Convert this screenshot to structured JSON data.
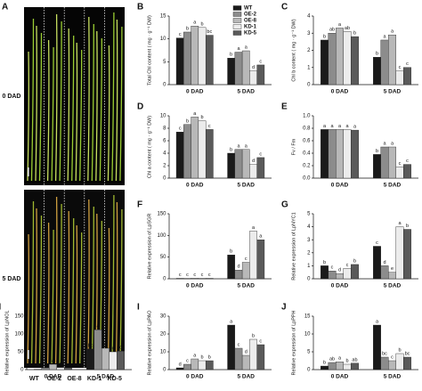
{
  "photo_panel": {
    "panel": "A",
    "rows": [
      "0 DAD",
      "5 DAD"
    ],
    "columns": [
      "WT",
      "OE-2",
      "OE-8",
      "KD-1",
      "KD-5"
    ]
  },
  "legend": {
    "names": [
      "WT",
      "OE-2",
      "OE-8",
      "KD-1",
      "KD-5"
    ],
    "colors": [
      "#1a1a1a",
      "#8c8c8c",
      "#b8b8b8",
      "#ececec",
      "#5a5a5a"
    ]
  },
  "chart_data": [
    {
      "type": "bar",
      "panel": "B",
      "y_label": "Total Chl content ( mg · g⁻¹ DW)",
      "categories": [
        "0 DAD",
        "5 DAD"
      ],
      "series": [
        {
          "values": [
            10.2,
            5.8
          ],
          "letters": [
            "c",
            "b"
          ]
        },
        {
          "values": [
            11.5,
            7.1
          ],
          "letters": [
            "b",
            "a"
          ]
        },
        {
          "values": [
            12.8,
            7.4
          ],
          "letters": [
            "a",
            "a"
          ]
        },
        {
          "values": [
            12.5,
            3.0
          ],
          "letters": [
            "b",
            "d"
          ]
        },
        {
          "values": [
            10.8,
            4.3
          ],
          "letters": [
            "bc",
            "c"
          ]
        }
      ],
      "ylim": [
        0,
        15
      ],
      "yticks": [
        0,
        5,
        10,
        15
      ]
    },
    {
      "type": "bar",
      "panel": "C",
      "y_label": "Chl b content ( mg · g⁻¹ DW)",
      "categories": [
        "0 DAD",
        "5 DAD"
      ],
      "series": [
        {
          "values": [
            2.6,
            1.6
          ],
          "letters": [
            "b",
            "b"
          ]
        },
        {
          "values": [
            3.0,
            2.6
          ],
          "letters": [
            "ab",
            "a"
          ]
        },
        {
          "values": [
            3.3,
            2.9
          ],
          "letters": [
            "a",
            "a"
          ]
        },
        {
          "values": [
            3.1,
            0.8
          ],
          "letters": [
            "ab",
            "c"
          ]
        },
        {
          "values": [
            2.8,
            1.0
          ],
          "letters": [
            "b",
            "c"
          ]
        }
      ],
      "ylim": [
        0,
        4
      ],
      "yticks": [
        0,
        1,
        2,
        3,
        4
      ]
    },
    {
      "type": "bar",
      "panel": "D",
      "y_label": "Chl a content ( mg · g⁻¹ DW)",
      "categories": [
        "0 DAD",
        "5 DAD"
      ],
      "series": [
        {
          "values": [
            7.4,
            4.0
          ],
          "letters": [
            "c",
            "b"
          ]
        },
        {
          "values": [
            8.6,
            4.6
          ],
          "letters": [
            "b",
            "a"
          ]
        },
        {
          "values": [
            9.8,
            4.6
          ],
          "letters": [
            "a",
            "a"
          ]
        },
        {
          "values": [
            9.2,
            2.2
          ],
          "letters": [
            "b",
            "d"
          ]
        },
        {
          "values": [
            7.8,
            3.3
          ],
          "letters": [
            "c",
            "c"
          ]
        }
      ],
      "ylim": [
        0,
        10
      ],
      "yticks": [
        0,
        2,
        4,
        6,
        8,
        10
      ]
    },
    {
      "type": "bar",
      "panel": "E",
      "y_label": "Fv / Fm",
      "categories": [
        "0 DAD",
        "5 DAD"
      ],
      "series": [
        {
          "values": [
            0.78,
            0.38
          ],
          "letters": [
            "a",
            "b"
          ]
        },
        {
          "values": [
            0.78,
            0.5
          ],
          "letters": [
            "a",
            "a"
          ]
        },
        {
          "values": [
            0.78,
            0.5
          ],
          "letters": [
            "a",
            "a"
          ]
        },
        {
          "values": [
            0.78,
            0.18
          ],
          "letters": [
            "a",
            "c"
          ]
        },
        {
          "values": [
            0.77,
            0.22
          ],
          "letters": [
            "a",
            "c"
          ]
        }
      ],
      "ylim": [
        0,
        1
      ],
      "yticks": [
        {
          "value": 0,
          "label": "0.0"
        },
        0.2,
        0.4,
        0.6,
        0.8,
        {
          "value": 1,
          "label": "1.0"
        }
      ]
    },
    {
      "type": "bar",
      "panel": "F",
      "y_label": "Relative expression of LpSGR",
      "categories": [
        "0 DAD",
        "5 DAD"
      ],
      "series": [
        {
          "values": [
            1,
            55
          ],
          "letters": [
            "c",
            "b"
          ]
        },
        {
          "values": [
            0.8,
            20
          ],
          "letters": [
            "c",
            "d"
          ]
        },
        {
          "values": [
            1.2,
            38
          ],
          "letters": [
            "c",
            "c"
          ]
        },
        {
          "values": [
            0.9,
            110
          ],
          "letters": [
            "c",
            "a"
          ]
        },
        {
          "values": [
            1,
            90
          ],
          "letters": [
            "c",
            "a"
          ]
        }
      ],
      "ylim": [
        0,
        150
      ],
      "yticks": [
        0,
        50,
        100,
        150
      ]
    },
    {
      "type": "bar",
      "panel": "G",
      "y_label": "Relative expression of LpNYC1",
      "categories": [
        "0 DAD",
        "5 DAD"
      ],
      "series": [
        {
          "values": [
            1.0,
            2.5
          ],
          "letters": [
            "b",
            "c"
          ]
        },
        {
          "values": [
            0.6,
            1.0
          ],
          "letters": [
            "c",
            "d"
          ]
        },
        {
          "values": [
            0.4,
            0.5
          ],
          "letters": [
            "d",
            "e"
          ]
        },
        {
          "values": [
            0.8,
            4.0
          ],
          "letters": [
            "c",
            "a"
          ]
        },
        {
          "values": [
            1.1,
            3.8
          ],
          "letters": [
            "b",
            "b"
          ]
        }
      ],
      "ylim": [
        0,
        5
      ],
      "yticks": [
        0,
        1,
        2,
        3,
        4,
        5
      ]
    },
    {
      "type": "bar",
      "panel": "H",
      "y_label": "Relative expression of LpNOL",
      "categories": [
        "0 DAD",
        "5 DAD"
      ],
      "series": [
        {
          "values": [
            1,
            58
          ],
          "letters": [
            "d",
            "bc"
          ]
        },
        {
          "values": [
            5,
            112
          ],
          "letters": [
            "b",
            "a"
          ]
        },
        {
          "values": [
            15,
            60
          ],
          "letters": [
            "a",
            "b"
          ]
        },
        {
          "values": [
            6,
            50
          ],
          "letters": [
            "c",
            "c"
          ]
        },
        {
          "values": [
            4,
            52
          ],
          "letters": [
            "c",
            "c"
          ]
        }
      ],
      "ylim": [
        0,
        150
      ],
      "yticks": [
        0,
        50,
        100,
        150
      ]
    },
    {
      "type": "bar",
      "panel": "I",
      "y_label": "Relative expression of LpPAO",
      "categories": [
        "0 DAD",
        "5 DAD"
      ],
      "series": [
        {
          "values": [
            1,
            25
          ],
          "letters": [
            "d",
            "a"
          ]
        },
        {
          "values": [
            3,
            12
          ],
          "letters": [
            "c",
            "c"
          ]
        },
        {
          "values": [
            6,
            8
          ],
          "letters": [
            "a",
            "d"
          ]
        },
        {
          "values": [
            5,
            17
          ],
          "letters": [
            "b",
            "b"
          ]
        },
        {
          "values": [
            5,
            14
          ],
          "letters": [
            "b",
            "c"
          ]
        }
      ],
      "ylim": [
        0,
        30
      ],
      "yticks": [
        0,
        10,
        20,
        30
      ]
    },
    {
      "type": "bar",
      "panel": "J",
      "y_label": "Relative expression of LpPPH",
      "categories": [
        "0 DAD",
        "5 DAD"
      ],
      "series": [
        {
          "values": [
            1,
            12.5
          ],
          "letters": [
            "b",
            "a"
          ]
        },
        {
          "values": [
            2,
            3.5
          ],
          "letters": [
            "ab",
            "bc"
          ]
        },
        {
          "values": [
            2.2,
            2.5
          ],
          "letters": [
            "a",
            "c"
          ]
        },
        {
          "values": [
            1.5,
            4.5
          ],
          "letters": [
            "b",
            "b"
          ]
        },
        {
          "values": [
            1.8,
            3.5
          ],
          "letters": [
            "ab",
            "bc"
          ]
        }
      ],
      "ylim": [
        0,
        15
      ],
      "yticks": [
        0,
        5,
        10,
        15
      ]
    }
  ]
}
